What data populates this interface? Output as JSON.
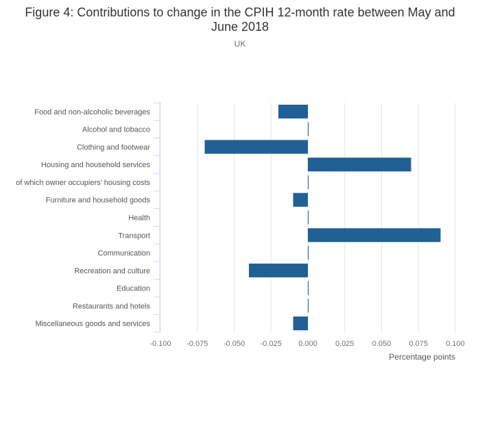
{
  "chart_data": {
    "type": "bar",
    "orientation": "horizontal",
    "title": "Figure 4: Contributions to change in the CPIH 12-month rate between May and June 2018",
    "subtitle": "UK",
    "xlabel": "Percentage points",
    "ylabel": "",
    "xlim": [
      -0.1,
      0.1
    ],
    "x_ticks": [
      "-0.100",
      "-0.075",
      "-0.050",
      "-0.025",
      "0.000",
      "0.025",
      "0.050",
      "0.075",
      "0.100"
    ],
    "grid": true,
    "bar_color": "#206095",
    "categories": [
      "Food and non-alcoholic beverages",
      "Alcohol and tobacco",
      "Clothing and footwear",
      "Housing and household services",
      "of which owner occupiers’ housing costs",
      "Furniture and household goods",
      "Health",
      "Transport",
      "Communication",
      "Recreation and culture",
      "Education",
      "Restaurants and hotels",
      "Miscellaneous goods and services"
    ],
    "values": [
      -0.02,
      0.0,
      -0.07,
      0.07,
      0.0,
      -0.01,
      0.0,
      0.09,
      0.0,
      -0.04,
      0.0,
      0.0,
      -0.01
    ]
  }
}
